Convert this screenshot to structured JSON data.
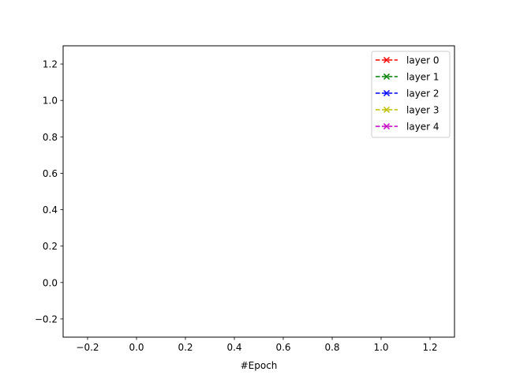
{
  "chart_data": {
    "type": "line",
    "title": "",
    "xlabel": "#Epoch",
    "ylabel": "",
    "xlim": [
      -0.3,
      1.3
    ],
    "ylim": [
      -0.3,
      1.3
    ],
    "xticks": [
      -0.2,
      0.0,
      0.2,
      0.4,
      0.6,
      0.8,
      1.0,
      1.2
    ],
    "yticks": [
      -0.2,
      0.0,
      0.2,
      0.4,
      0.6,
      0.8,
      1.0,
      1.2
    ],
    "xtick_labels": [
      "−0.2",
      "0.0",
      "0.2",
      "0.4",
      "0.6",
      "0.8",
      "1.0",
      "1.2"
    ],
    "ytick_labels": [
      "−0.2",
      "0.0",
      "0.2",
      "0.4",
      "0.6",
      "0.8",
      "1.0",
      "1.2"
    ],
    "grid": false,
    "legend_position": "top-right",
    "series": [
      {
        "name": "layer 0",
        "color": "#ff0000",
        "linestyle": "dashed",
        "marker": "x",
        "x": [],
        "y": []
      },
      {
        "name": "layer 1",
        "color": "#008000",
        "linestyle": "dashed",
        "marker": "x",
        "x": [],
        "y": []
      },
      {
        "name": "layer 2",
        "color": "#0000ff",
        "linestyle": "dashed",
        "marker": "x",
        "x": [],
        "y": []
      },
      {
        "name": "layer 3",
        "color": "#bfbf00",
        "linestyle": "dashed",
        "marker": "x",
        "x": [],
        "y": []
      },
      {
        "name": "layer 4",
        "color": "#bf00bf",
        "linestyle": "dashed",
        "marker": "x",
        "x": [],
        "y": []
      }
    ]
  }
}
